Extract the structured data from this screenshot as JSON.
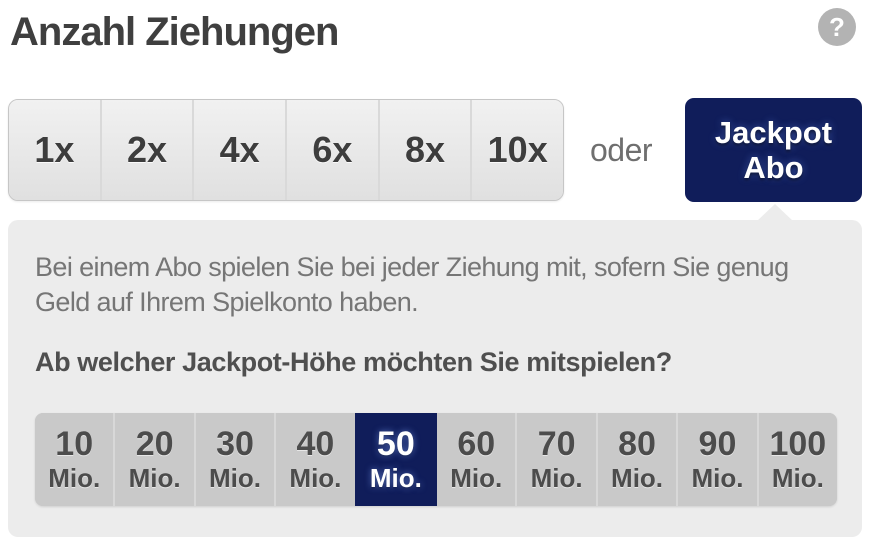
{
  "header": {
    "title": "Anzahl Ziehungen",
    "help_icon_glyph": "?"
  },
  "draw_selector": {
    "options": [
      "1x",
      "2x",
      "4x",
      "6x",
      "8x",
      "10x"
    ],
    "or_label": "oder",
    "jackpot_button": {
      "line1": "Jackpot",
      "line2": "Abo"
    }
  },
  "abo_panel": {
    "description": "Bei einem Abo spielen Sie bei jeder Ziehung mit, sofern Sie genug Geld auf Ihrem Spielkonto haben.",
    "question": "Ab welcher Jackpot-Höhe möchten Sie mitspielen?",
    "thresholds": [
      {
        "value": "10",
        "unit": "Mio."
      },
      {
        "value": "20",
        "unit": "Mio."
      },
      {
        "value": "30",
        "unit": "Mio."
      },
      {
        "value": "40",
        "unit": "Mio."
      },
      {
        "value": "50",
        "unit": "Mio."
      },
      {
        "value": "60",
        "unit": "Mio."
      },
      {
        "value": "70",
        "unit": "Mio."
      },
      {
        "value": "80",
        "unit": "Mio."
      },
      {
        "value": "90",
        "unit": "Mio."
      },
      {
        "value": "100",
        "unit": "Mio."
      }
    ],
    "selected_value": "50"
  },
  "colors": {
    "accent_navy": "#101d5a",
    "panel_bg": "#ececec",
    "threshold_button_bg": "#c9c9c9",
    "title_color": "#3f3f3f"
  }
}
